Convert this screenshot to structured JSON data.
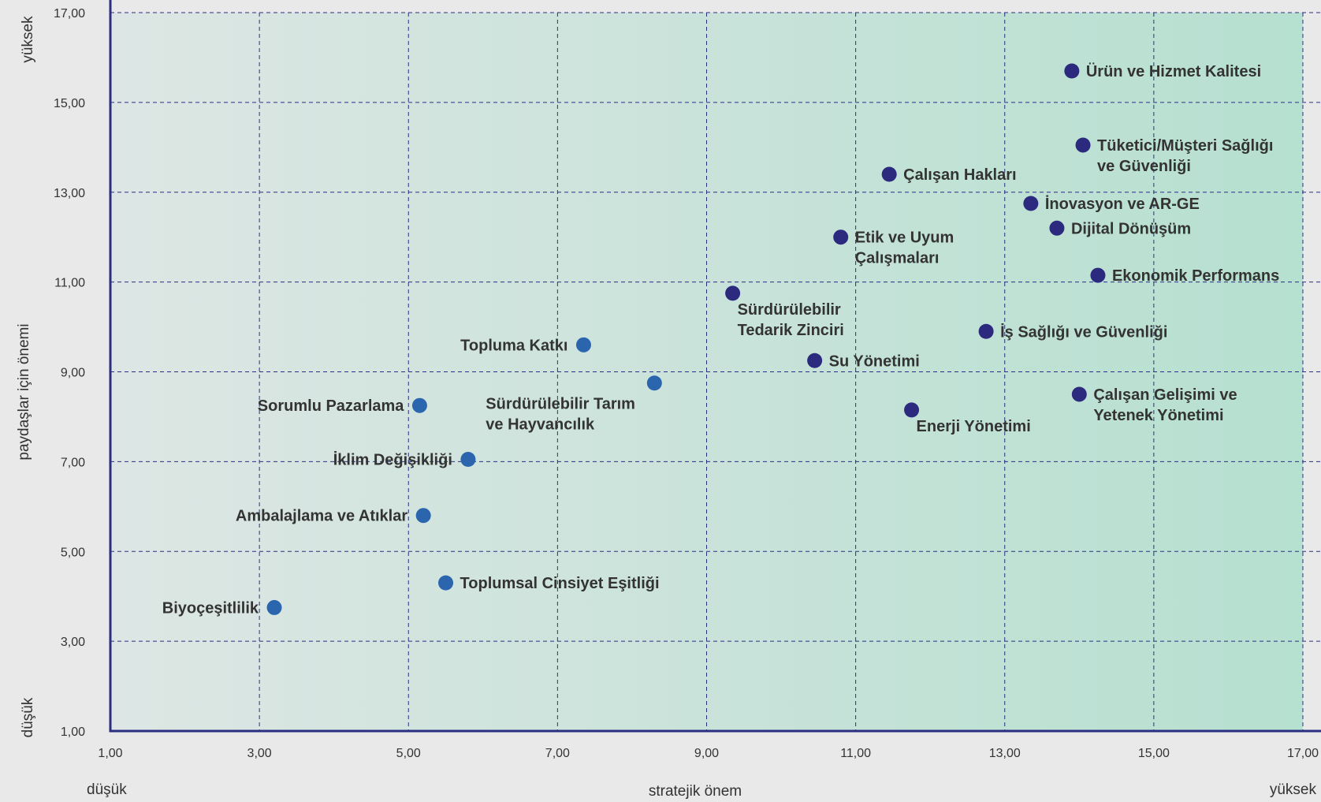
{
  "colors": {
    "background": "#e9e9e9",
    "plot_gradient_start": "#dde6e4",
    "plot_gradient_end": "#b6e0d0",
    "axis": "#2b2f82",
    "grid": "#2b2f82",
    "dark_point": "#2b2a7e",
    "light_point": "#2a65ad",
    "text": "#333333"
  },
  "chart_data": {
    "type": "scatter",
    "title": "",
    "xlabel": "stratejik önem",
    "ylabel": "paydaşlar için önemi",
    "xlim": [
      1,
      17
    ],
    "ylim": [
      1,
      17
    ],
    "grid": true,
    "x_ticks": [
      "1,00",
      "3,00",
      "5,00",
      "7,00",
      "9,00",
      "11,00",
      "13,00",
      "15,00",
      "17,00"
    ],
    "y_ticks": [
      "1,00",
      "3,00",
      "5,00",
      "7,00",
      "9,00",
      "11,00",
      "13,00",
      "15,00",
      "17,00"
    ],
    "x_low_label": "düşük",
    "x_high_label": "yüksek",
    "y_low_label": "düşük",
    "y_high_label": "yüksek",
    "points": [
      {
        "lines": [
          "Ürün ve Hizmet Kalitesi"
        ],
        "x": 13.9,
        "y": 15.7,
        "group": "dark",
        "label_pos": "right"
      },
      {
        "lines": [
          "Tüketici/Müşteri Sağlığı",
          "ve Güvenliği"
        ],
        "x": 14.05,
        "y": 14.05,
        "group": "dark",
        "label_pos": "right"
      },
      {
        "lines": [
          "Çalışan Hakları"
        ],
        "x": 11.45,
        "y": 13.4,
        "group": "dark",
        "label_pos": "right"
      },
      {
        "lines": [
          "İnovasyon ve AR-GE"
        ],
        "x": 13.35,
        "y": 12.75,
        "group": "dark",
        "label_pos": "right"
      },
      {
        "lines": [
          "Dijital Dönüşüm"
        ],
        "x": 13.7,
        "y": 12.2,
        "group": "dark",
        "label_pos": "right"
      },
      {
        "lines": [
          "Etik ve Uyum",
          "Çalışmaları"
        ],
        "x": 10.8,
        "y": 12.0,
        "group": "dark",
        "label_pos": "right"
      },
      {
        "lines": [
          "Ekonomik Performans"
        ],
        "x": 14.25,
        "y": 11.15,
        "group": "dark",
        "label_pos": "right"
      },
      {
        "lines": [
          "Sürdürülebilir",
          "Tedarik Zinciri"
        ],
        "x": 9.35,
        "y": 10.75,
        "group": "dark",
        "label_pos": "below"
      },
      {
        "lines": [
          "İş Sağlığı ve Güvenliği"
        ],
        "x": 12.75,
        "y": 9.9,
        "group": "dark",
        "label_pos": "right"
      },
      {
        "lines": [
          "Su Yönetimi"
        ],
        "x": 10.45,
        "y": 9.25,
        "group": "dark",
        "label_pos": "right"
      },
      {
        "lines": [
          "Çalışan Gelişimi ve",
          "Yetenek Yönetimi"
        ],
        "x": 14.0,
        "y": 8.5,
        "group": "dark",
        "label_pos": "right"
      },
      {
        "lines": [
          "Enerji Yönetimi"
        ],
        "x": 11.75,
        "y": 8.15,
        "group": "dark",
        "label_pos": "below"
      },
      {
        "lines": [
          "Topluma Katkı"
        ],
        "x": 7.35,
        "y": 9.6,
        "group": "light",
        "label_pos": "left"
      },
      {
        "lines": [
          "Sürdürülebilir Tarım",
          "ve Hayvancılık"
        ],
        "x": 8.3,
        "y": 8.75,
        "group": "light",
        "label_pos": "below-left"
      },
      {
        "lines": [
          "Sorumlu Pazarlama"
        ],
        "x": 5.15,
        "y": 8.25,
        "group": "light",
        "label_pos": "left"
      },
      {
        "lines": [
          "İklim Değişikliği"
        ],
        "x": 5.8,
        "y": 7.05,
        "group": "light",
        "label_pos": "left"
      },
      {
        "lines": [
          "Ambalajlama ve Atıklar"
        ],
        "x": 5.2,
        "y": 5.8,
        "group": "light",
        "label_pos": "left"
      },
      {
        "lines": [
          "Toplumsal Cinsiyet Eşitliği"
        ],
        "x": 5.5,
        "y": 4.3,
        "group": "light",
        "label_pos": "right"
      },
      {
        "lines": [
          "Biyoçeşitlilik"
        ],
        "x": 3.2,
        "y": 3.75,
        "group": "light",
        "label_pos": "left"
      }
    ]
  }
}
